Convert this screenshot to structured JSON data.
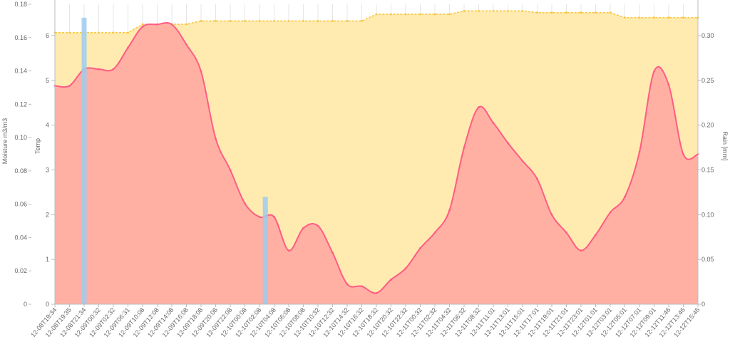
{
  "chart_data": {
    "type": "line",
    "grid": true,
    "legend": "none",
    "y_left_outer": {
      "title": "Moisture m3/m3",
      "range": [
        0,
        0.18
      ],
      "ticks": [
        0,
        0.02,
        0.04,
        0.06,
        0.08,
        0.1,
        0.12,
        0.14,
        0.16,
        0.18
      ],
      "tick_labels": [
        "0",
        "0.02",
        "0.04",
        "0.06",
        "0.08",
        "0.10",
        "0.12",
        "0.14",
        "0.16",
        "0.18"
      ]
    },
    "y_left_inner": {
      "title": "Temp",
      "range": [
        0,
        6.7
      ],
      "ticks": [
        0,
        1,
        2,
        3,
        4,
        5,
        6
      ],
      "tick_labels": [
        "0",
        "1",
        "2",
        "3",
        "4",
        "5",
        "6"
      ]
    },
    "y_right": {
      "title": "Rain [mm]",
      "range": [
        0,
        0.335
      ],
      "ticks": [
        0,
        0.05,
        0.1,
        0.15,
        0.2,
        0.25,
        0.3
      ],
      "tick_labels": [
        "0",
        "0.05",
        "0.10",
        "0.15",
        "0.20",
        "0.25",
        "0.30"
      ]
    },
    "x_tick_labels": [
      "12-08T19:34",
      "12-08T19:35",
      "12-08T21:34",
      "12-09T00:32",
      "12-09T02:32",
      "12-09T06:31",
      "12-09T10:08",
      "12-09T12:08",
      "12-09T14:08",
      "12-09T16:08",
      "12-09T18:08",
      "12-09T20:08",
      "12-09T22:08",
      "12-10T00:08",
      "12-10T02:08",
      "12-10T04:08",
      "12-10T06:08",
      "12-10T08:08",
      "12-10T10:32",
      "12-10T12:32",
      "12-10T14:32",
      "12-10T16:32",
      "12-10T18:32",
      "12-10T20:32",
      "12-10T22:32",
      "12-11T00:32",
      "12-11T02:32",
      "12-11T04:32",
      "12-11T06:32",
      "12-11T08:32",
      "12-11T11:01",
      "12-11T13:01",
      "12-11T15:01",
      "12-11T17:01",
      "12-11T19:01",
      "12-11T21:01",
      "12-11T23:01",
      "12-12T01:01",
      "12-12T03:01",
      "12-12T05:01",
      "12-12T07:01",
      "12-12T09:01",
      "12-12T11:46",
      "12-12T13:46",
      "12-12T15:46"
    ],
    "colors": {
      "moisture_fill": "#ffeab0",
      "moisture_line": "#f7c842",
      "temp_fill": "#ffb0a3",
      "temp_line": "#ff5c84",
      "rain_bar": "#9ccdf0"
    },
    "series": [
      {
        "axis": "moisture",
        "x": [
          0,
          1,
          2,
          3,
          4,
          5,
          6,
          7,
          8,
          9,
          10,
          11,
          12,
          13,
          14,
          15,
          16,
          17,
          18,
          19,
          20,
          21,
          22,
          23,
          24,
          25,
          26,
          27,
          28,
          29,
          30,
          31,
          32,
          33,
          34,
          35,
          36,
          37,
          38,
          39,
          40,
          41,
          42,
          43,
          44
        ],
        "values": [
          0.163,
          0.163,
          0.163,
          0.163,
          0.163,
          0.163,
          0.168,
          0.168,
          0.168,
          0.168,
          0.17,
          0.17,
          0.17,
          0.17,
          0.17,
          0.17,
          0.17,
          0.17,
          0.17,
          0.17,
          0.17,
          0.17,
          0.174,
          0.174,
          0.174,
          0.174,
          0.174,
          0.174,
          0.176,
          0.176,
          0.176,
          0.176,
          0.176,
          0.175,
          0.175,
          0.175,
          0.175,
          0.175,
          0.175,
          0.172,
          0.172,
          0.172,
          0.172,
          0.172,
          0.172
        ]
      },
      {
        "axis": "temp",
        "x": [
          0,
          1,
          2,
          3,
          4,
          5,
          6,
          7,
          8,
          9,
          10,
          11,
          12,
          13,
          14,
          15,
          16,
          17,
          18,
          19,
          20,
          21,
          22,
          23,
          24,
          25,
          26,
          27,
          28,
          29,
          30,
          31,
          32,
          33,
          34,
          35,
          36,
          37,
          38,
          39,
          40,
          41,
          42,
          43,
          44
        ],
        "values": [
          4.88,
          4.88,
          5.25,
          5.25,
          5.25,
          5.73,
          6.2,
          6.25,
          6.25,
          5.8,
          5.2,
          3.7,
          3.0,
          2.25,
          1.95,
          1.95,
          1.2,
          1.7,
          1.75,
          1.15,
          0.45,
          0.4,
          0.25,
          0.55,
          0.8,
          1.25,
          1.6,
          2.1,
          3.5,
          4.4,
          4.05,
          3.6,
          3.2,
          2.8,
          2.0,
          1.6,
          1.2,
          1.55,
          2.05,
          2.4,
          3.4,
          5.2,
          4.9,
          3.35,
          3.35
        ]
      },
      {
        "axis": "rain",
        "x": [
          2,
          14.4
        ],
        "values": [
          0.32,
          0.12
        ]
      }
    ]
  }
}
